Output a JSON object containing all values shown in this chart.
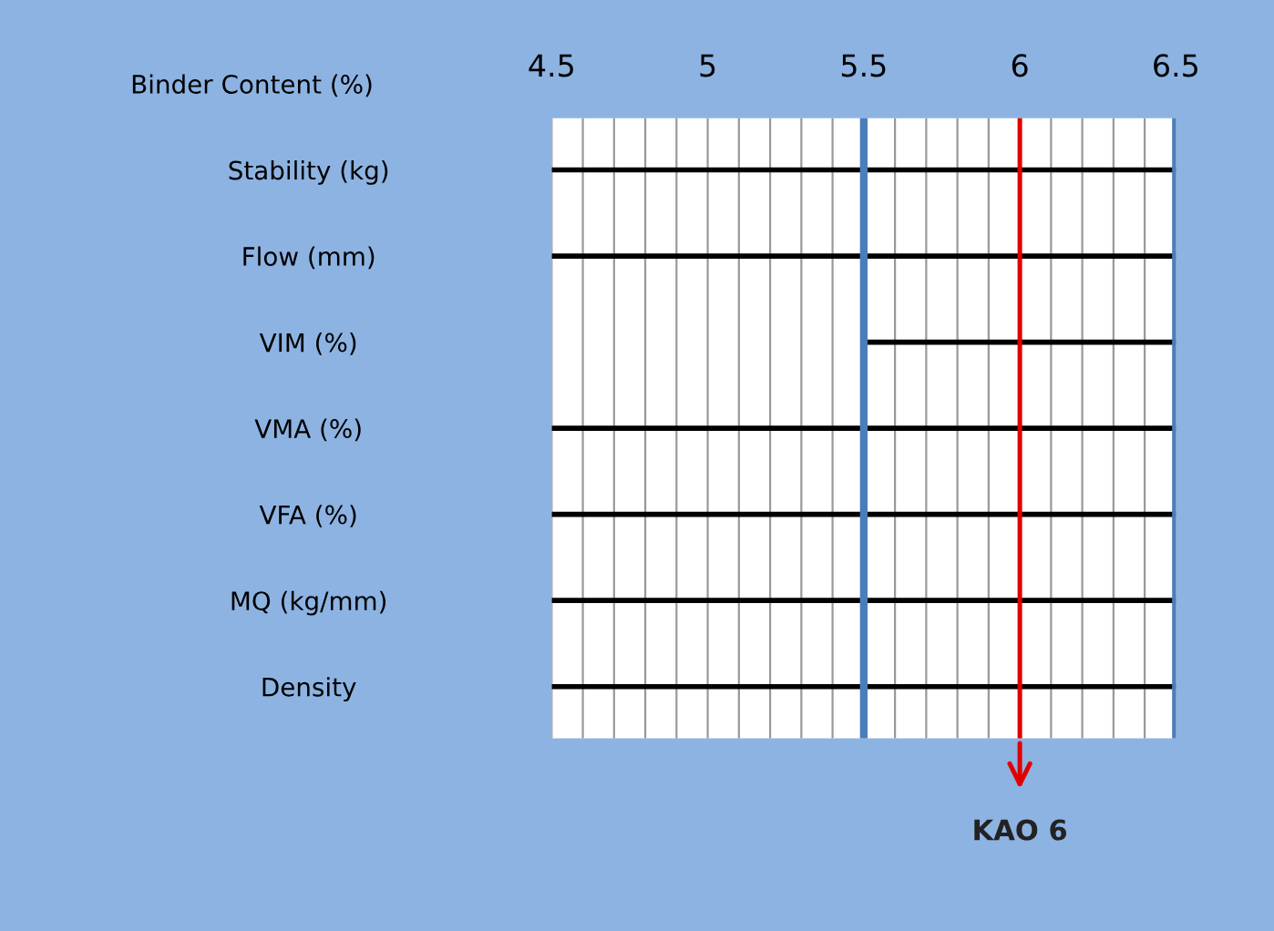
{
  "chart_data": {
    "type": "bar",
    "orientation": "horizontal",
    "xlabel": "Binder Content (%)",
    "categories": [
      "Stability (kg)",
      "Flow (mm)",
      "VIM (%)",
      "VMA (%)",
      "VFA (%)",
      "MQ (kg/mm)",
      "Density"
    ],
    "base": [
      4.5,
      4.5,
      5.5,
      4.5,
      4.5,
      4.5,
      4.5
    ],
    "values": [
      2,
      2,
      1,
      2,
      2,
      2,
      2
    ],
    "color": "#000000",
    "xlim": [
      4.5,
      6.5
    ],
    "xticks": [
      4.5,
      {
        "value": 4.6,
        "label": null
      },
      {
        "value": 4.7,
        "label": null
      },
      {
        "value": 4.8,
        "label": null
      },
      {
        "value": 4.9,
        "label": null
      },
      5,
      {
        "value": 5.1,
        "label": null
      },
      {
        "value": 5.2,
        "label": null
      },
      {
        "value": 5.3,
        "label": null
      },
      {
        "value": 5.4,
        "label": null
      },
      5.5,
      {
        "value": 5.6,
        "label": null
      },
      {
        "value": 5.7,
        "label": null
      },
      {
        "value": 5.8,
        "label": null
      },
      {
        "value": 5.9,
        "label": null
      },
      6,
      {
        "value": 6.1,
        "label": null
      },
      {
        "value": 6.2,
        "label": null
      },
      {
        "value": 6.3,
        "label": null
      },
      {
        "value": 6.4,
        "label": null
      },
      6.5
    ],
    "grid": "x",
    "ref_lines": [
      {
        "axis": "x",
        "value": 5.5,
        "color": "#4a7ebb"
      },
      {
        "axis": "x",
        "value": 6.5,
        "color": "#4a7ebb"
      },
      {
        "axis": "x",
        "value": 6,
        "label": "KAO 6",
        "color": "#e00000"
      }
    ]
  }
}
